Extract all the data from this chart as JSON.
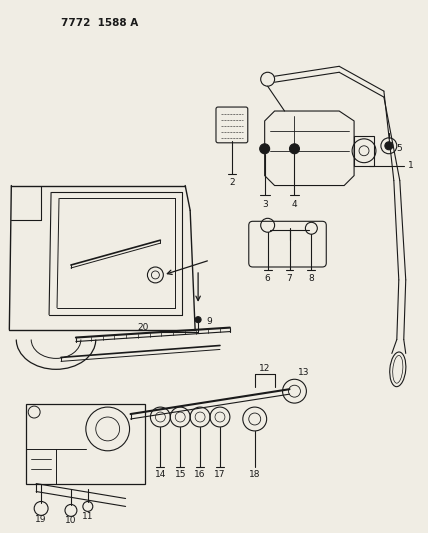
{
  "title": "7772  1588 A",
  "bg_color": "#f0ede4",
  "lc": "#1a1a1a",
  "lw": 0.8,
  "figsize": [
    4.28,
    5.33
  ],
  "dpi": 100
}
